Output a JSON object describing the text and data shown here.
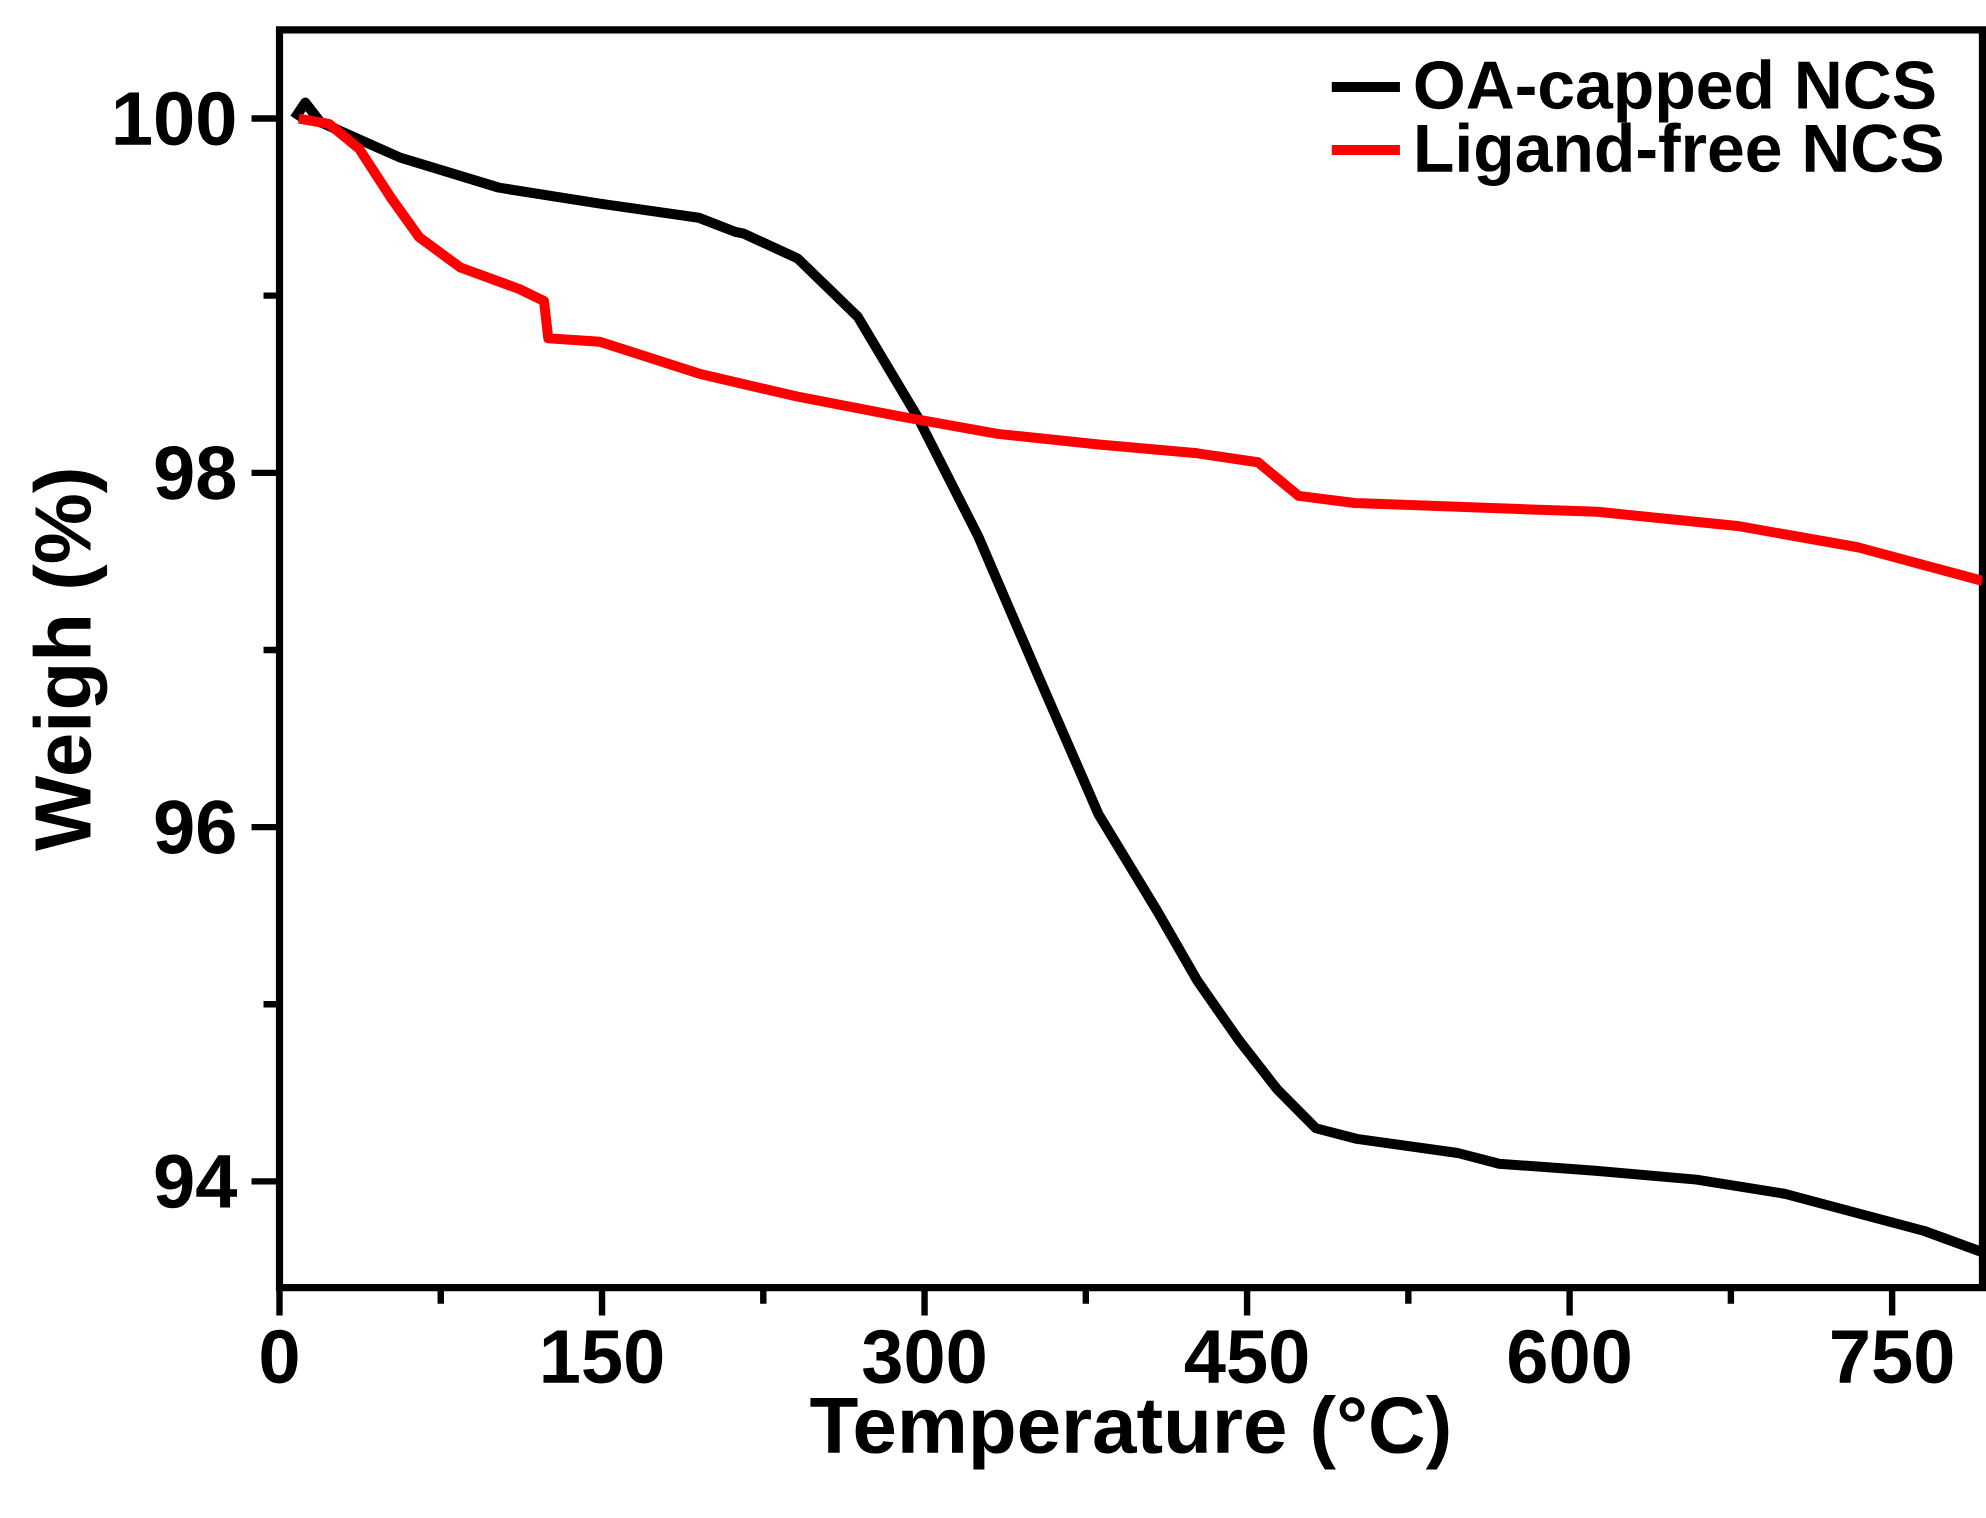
{
  "chart_data": {
    "type": "line",
    "xlabel": "Temperature (°C)",
    "ylabel": "Weigh (%)",
    "xlim": [
      0,
      792
    ],
    "ylim": [
      93.4,
      100.5
    ],
    "xticks": [
      0,
      150,
      300,
      450,
      600,
      750
    ],
    "yticks": [
      94,
      96,
      98,
      100
    ],
    "legend": "top right",
    "grid": false,
    "marker": "none",
    "line_style": "solid",
    "series": [
      {
        "name": "OA-capped  NCS",
        "color": "#000000",
        "x": [
          7,
          12,
          19,
          56,
          102,
          149,
          195,
          212,
          216,
          241,
          269,
          297,
          325,
          353,
          381,
          409,
          427,
          446,
          464,
          482,
          501,
          548,
          567,
          612,
          659,
          700,
          734,
          765,
          792
        ],
        "values": [
          100.0,
          100.09,
          99.98,
          99.78,
          99.61,
          99.52,
          99.44,
          99.36,
          99.35,
          99.21,
          98.88,
          98.31,
          97.64,
          96.85,
          96.07,
          95.51,
          95.13,
          94.8,
          94.52,
          94.3,
          94.24,
          94.16,
          94.1,
          94.06,
          94.01,
          93.93,
          93.82,
          93.72,
          93.6
        ]
      },
      {
        "name": "Ligand-free NCS",
        "color": "#ff0000",
        "x": [
          9,
          23,
          37,
          52,
          65,
          84,
          111,
          123,
          125,
          149,
          195,
          241,
          288,
          334,
          381,
          427,
          455,
          474,
          500,
          567,
          613,
          678,
          734,
          792
        ],
        "values": [
          100.0,
          99.97,
          99.83,
          99.55,
          99.33,
          99.16,
          99.04,
          98.97,
          98.76,
          98.74,
          98.56,
          98.43,
          98.32,
          98.22,
          98.16,
          98.11,
          98.06,
          97.87,
          97.83,
          97.8,
          97.78,
          97.7,
          97.58,
          97.39
        ]
      }
    ]
  }
}
